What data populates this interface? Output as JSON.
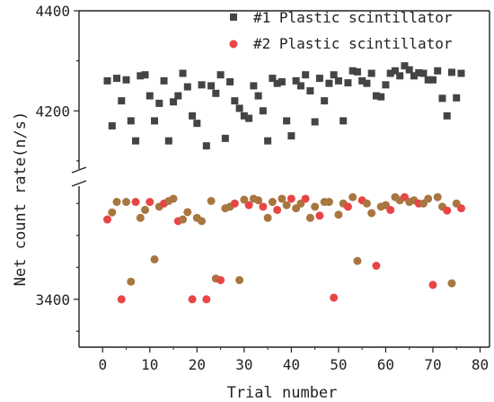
{
  "chart_data": {
    "type": "scatter",
    "title": "",
    "xlabel": "Trial number",
    "ylabel": "Net count rate(n/s)",
    "xlim": [
      -5,
      82
    ],
    "xticks": [
      0,
      10,
      20,
      30,
      40,
      50,
      60,
      70,
      80
    ],
    "y_break": true,
    "upper_ylim": [
      4080,
      4400
    ],
    "lower_ylim": [
      3250,
      3760
    ],
    "yticks_labeled": [
      3400,
      4200,
      4400
    ],
    "grid": false,
    "legend_position": "top-right",
    "series": [
      {
        "name": "#1 Plastic scintillator",
        "marker": "square",
        "color": "#444444",
        "x": [
          1,
          2,
          3,
          4,
          5,
          6,
          7,
          8,
          9,
          10,
          11,
          12,
          13,
          14,
          15,
          16,
          17,
          18,
          19,
          20,
          21,
          22,
          23,
          24,
          25,
          26,
          27,
          28,
          29,
          30,
          31,
          32,
          33,
          34,
          35,
          36,
          37,
          38,
          39,
          40,
          41,
          42,
          43,
          44,
          45,
          46,
          47,
          48,
          49,
          50,
          51,
          52,
          53,
          54,
          55,
          56,
          57,
          58,
          59,
          60,
          61,
          62,
          63,
          64,
          65,
          66,
          67,
          68,
          69,
          70,
          71,
          72,
          73,
          74,
          75,
          76
        ],
        "y": [
          4260,
          4170,
          4265,
          4220,
          4262,
          4180,
          4140,
          4270,
          4272,
          4230,
          4180,
          4215,
          4260,
          4140,
          4218,
          4230,
          4275,
          4248,
          4190,
          4175,
          4252,
          4130,
          4250,
          4235,
          4272,
          4145,
          4258,
          4220,
          4205,
          4190,
          4185,
          4250,
          4230,
          4200,
          4140,
          4265,
          4255,
          4258,
          4180,
          4150,
          4260,
          4250,
          4272,
          4240,
          4178,
          4265,
          4220,
          4255,
          4272,
          4260,
          4180,
          4256,
          4280,
          4278,
          4260,
          4255,
          4275,
          4230,
          4228,
          4252,
          4275,
          4280,
          4270,
          4290,
          4282,
          4270,
          4276,
          4275,
          4262,
          4262,
          4280,
          4225,
          4190,
          4277,
          4226,
          4275
        ]
      },
      {
        "name": "#2 Plastic scintillator",
        "marker": "circle",
        "color": "#e84545",
        "x": [
          1,
          2,
          3,
          4,
          5,
          6,
          7,
          8,
          9,
          10,
          11,
          12,
          13,
          14,
          15,
          16,
          17,
          18,
          19,
          20,
          21,
          22,
          23,
          24,
          25,
          26,
          27,
          28,
          29,
          30,
          31,
          32,
          33,
          34,
          35,
          36,
          37,
          38,
          39,
          40,
          41,
          42,
          43,
          44,
          45,
          46,
          47,
          48,
          49,
          50,
          51,
          52,
          53,
          54,
          55,
          56,
          57,
          58,
          59,
          60,
          61,
          62,
          63,
          64,
          65,
          66,
          67,
          68,
          69,
          70,
          71,
          72,
          73,
          74,
          75,
          76
        ],
        "y": [
          3650,
          3672,
          3705,
          3400,
          3705,
          3455,
          3705,
          3655,
          3680,
          3705,
          3525,
          3690,
          3700,
          3708,
          3715,
          3645,
          3650,
          3673,
          3400,
          3655,
          3645,
          3400,
          3708,
          3465,
          3460,
          3685,
          3690,
          3700,
          3460,
          3712,
          3695,
          3715,
          3710,
          3690,
          3655,
          3705,
          3680,
          3715,
          3695,
          3715,
          3685,
          3700,
          3715,
          3655,
          3690,
          3662,
          3705,
          3705,
          3405,
          3665,
          3700,
          3690,
          3720,
          3520,
          3710,
          3700,
          3670,
          3505,
          3690,
          3695,
          3680,
          3720,
          3710,
          3720,
          3705,
          3710,
          3700,
          3700,
          3715,
          3445,
          3720,
          3690,
          3678,
          3450,
          3700,
          3685
        ]
      }
    ]
  }
}
